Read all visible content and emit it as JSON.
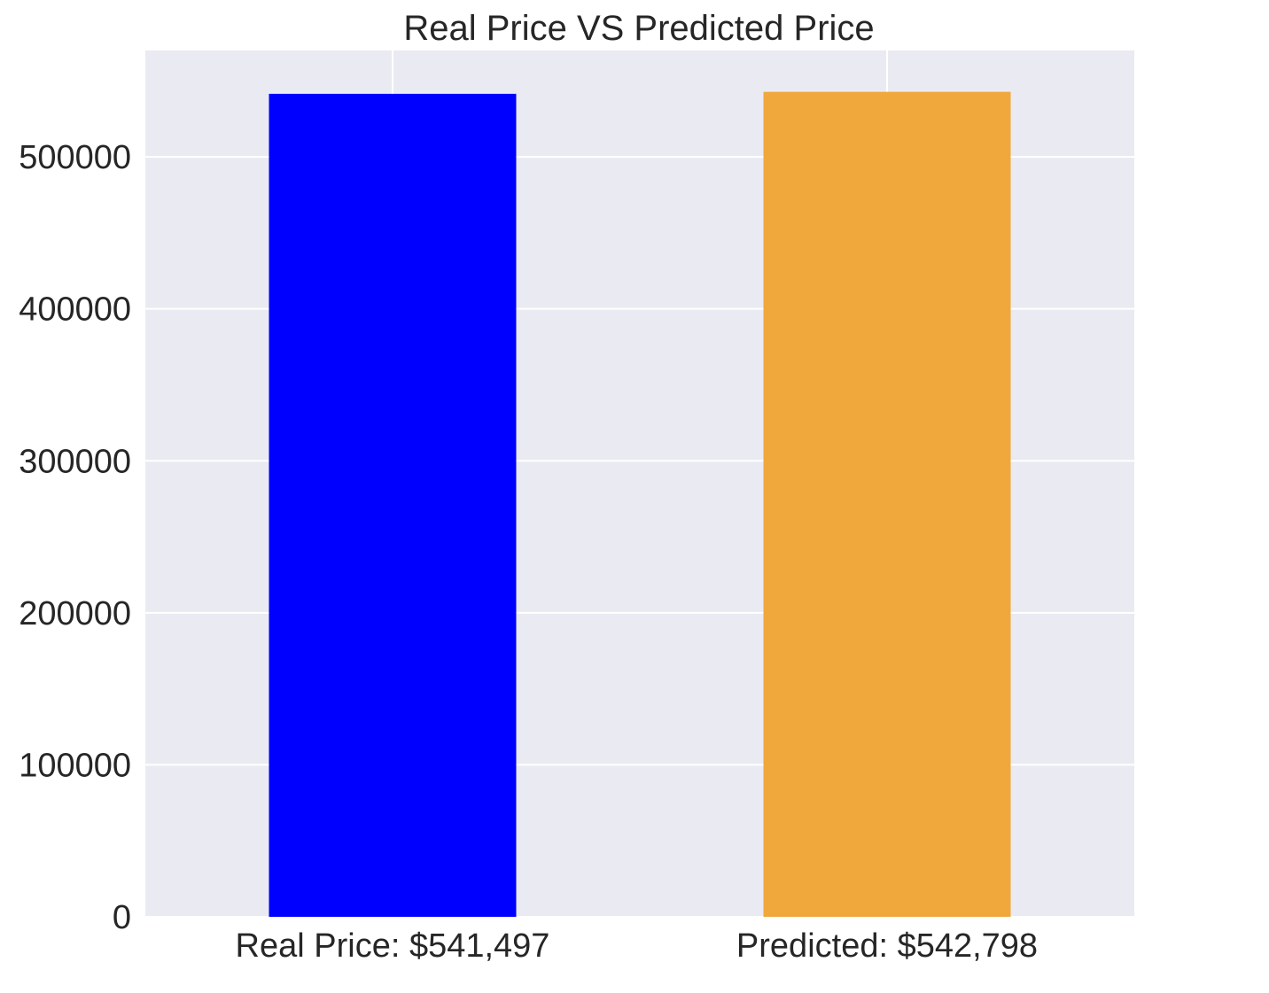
{
  "chart_data": {
    "type": "bar",
    "title": "Real Price VS Predicted Price",
    "xlabel": "",
    "ylabel": "",
    "categories": [
      "Real Price: $541,497",
      "Predicted: $542,798"
    ],
    "values": [
      541497,
      542798
    ],
    "colors": [
      "#0000ff",
      "#f0a83c"
    ],
    "ylim": [
      0,
      570000
    ],
    "yticks": [
      0,
      100000,
      200000,
      300000,
      400000,
      500000
    ],
    "ytick_labels": [
      "0",
      "100000",
      "200000",
      "300000",
      "400000",
      "500000"
    ],
    "grid": true,
    "background": "#eaeaf2",
    "grid_color": "#ffffff"
  }
}
